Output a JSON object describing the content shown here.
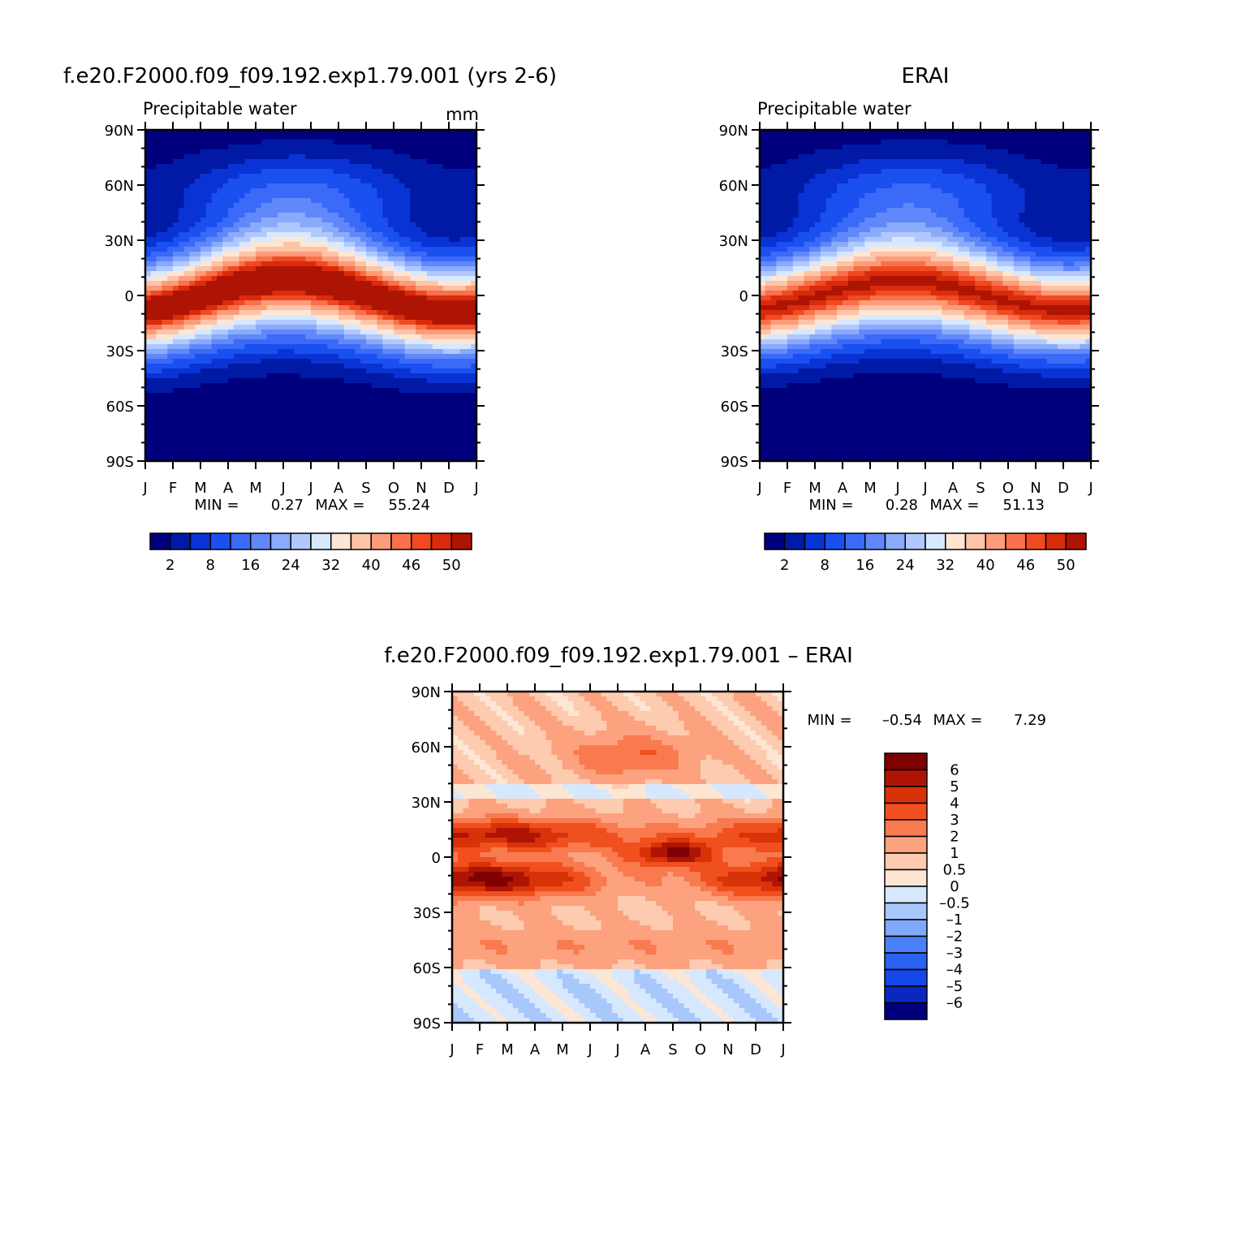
{
  "chart_data": [
    {
      "type": "heatmap",
      "title": "f.e20.F2000.f09_f09.192.exp1.79.001 (yrs 2-6)",
      "subtitle": "Precipitable water",
      "units": "mm",
      "x_ticks": [
        "J",
        "F",
        "M",
        "A",
        "M",
        "J",
        "J",
        "A",
        "S",
        "O",
        "N",
        "D",
        "J"
      ],
      "y_ticks": [
        "90N",
        "60N",
        "30N",
        "0",
        "30S",
        "60S",
        "90S"
      ],
      "ylim": [
        -90,
        90
      ],
      "stats": {
        "min_label": "MIN =",
        "min": "0.27",
        "max_label": "MAX =",
        "max": "55.24"
      },
      "levels": [
        2,
        5,
        8,
        12,
        16,
        20,
        24,
        28,
        32,
        36,
        40,
        44,
        46,
        48,
        50
      ],
      "colorbar_labels": [
        "2",
        "8",
        "16",
        "24",
        "32",
        "40",
        "46",
        "50"
      ],
      "field_params": {
        "equator_peak": 54,
        "peak_lat_shift": 9,
        "width_factor": 1.0,
        "pole_min": 0.5
      }
    },
    {
      "type": "heatmap",
      "title": "ERAI",
      "subtitle": "Precipitable water",
      "x_ticks": [
        "J",
        "F",
        "M",
        "A",
        "M",
        "J",
        "J",
        "A",
        "S",
        "O",
        "N",
        "D",
        "J"
      ],
      "y_ticks": [
        "90N",
        "60N",
        "30N",
        "0",
        "30S",
        "60S",
        "90S"
      ],
      "ylim": [
        -90,
        90
      ],
      "stats": {
        "min_label": "MIN =",
        "min": "0.28",
        "max_label": "MAX =",
        "max": "51.13"
      },
      "levels": [
        2,
        5,
        8,
        12,
        16,
        20,
        24,
        28,
        32,
        36,
        40,
        44,
        46,
        48,
        50
      ],
      "colorbar_labels": [
        "2",
        "8",
        "16",
        "24",
        "32",
        "40",
        "46",
        "50"
      ],
      "field_params": {
        "equator_peak": 50.5,
        "peak_lat_shift": 8,
        "width_factor": 0.97,
        "pole_min": 0.5
      }
    },
    {
      "type": "heatmap",
      "title": "f.e20.F2000.f09_f09.192.exp1.79.001 – ERAI",
      "x_ticks": [
        "J",
        "F",
        "M",
        "A",
        "M",
        "J",
        "J",
        "A",
        "S",
        "O",
        "N",
        "D",
        "J"
      ],
      "y_ticks": [
        "90N",
        "60N",
        "30N",
        "0",
        "30S",
        "60S",
        "90S"
      ],
      "ylim": [
        -90,
        90
      ],
      "stats": {
        "min_label": "MIN =",
        "min": "–0.54",
        "max_label": "MAX =",
        "max": "7.29"
      },
      "levels": [
        -6,
        -5,
        -4,
        -3,
        -2,
        -1,
        -0.5,
        0,
        0.5,
        1,
        2,
        3,
        4,
        5,
        6
      ],
      "colorbar_labels": [
        "6",
        "5",
        "4",
        "3",
        "2",
        "1",
        "0.5",
        "0",
        "–0.5",
        "–1",
        "–2",
        "–3",
        "–4",
        "–5",
        "–6"
      ]
    }
  ],
  "colors": {
    "abs_palette": [
      "#00007f",
      "#001aa6",
      "#0a33d4",
      "#1a4ff0",
      "#3a6af7",
      "#6088fa",
      "#8aaafc",
      "#b0c8fd",
      "#d8e8fe",
      "#fee6d4",
      "#fdc4a8",
      "#fc9c78",
      "#f8704c",
      "#f04a22",
      "#d82c0c",
      "#ae1404",
      "#7f0000"
    ],
    "diff_palette": [
      "#00007f",
      "#0a28c0",
      "#1446e8",
      "#2a62f2",
      "#4a80f7",
      "#80a8fb",
      "#a8c8fc",
      "#d6e8fd",
      "#fee6d4",
      "#fdcbaf",
      "#fca27f",
      "#f97a4e",
      "#f0501e",
      "#d83208",
      "#ae1404",
      "#7f0000"
    ]
  }
}
